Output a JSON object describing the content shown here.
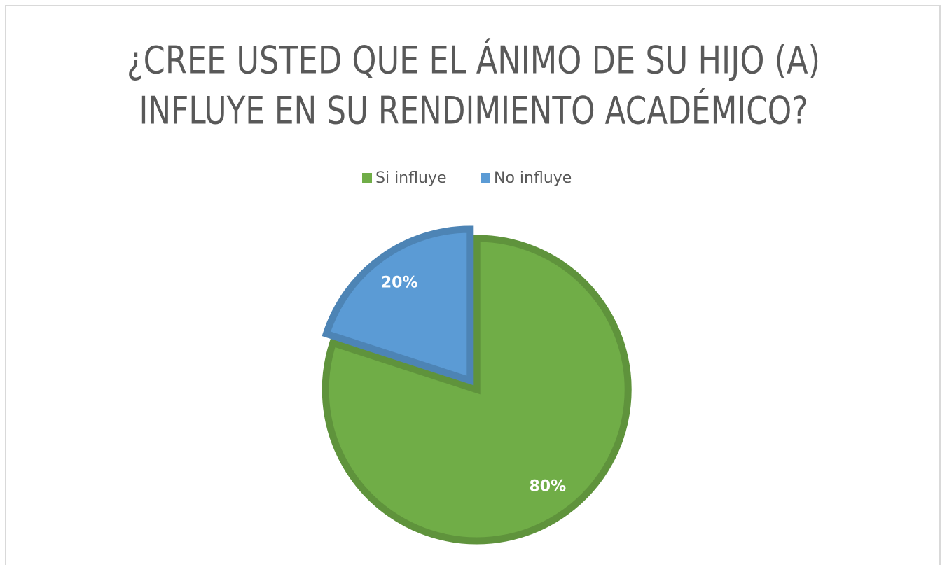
{
  "chart_data": {
    "type": "pie",
    "title": [
      "¿CREE USTED QUE EL ÁNIMO  DE SU HIJO (A)",
      "INFLUYE EN SU RENDIMIENTO ACADÉMICO?"
    ],
    "categories": [
      "Si influye",
      "No influye"
    ],
    "values": [
      80,
      20
    ],
    "value_labels": [
      "80%",
      "20%"
    ],
    "colors": [
      "#70ad47",
      "#5b9bd5"
    ],
    "legend": "top"
  }
}
